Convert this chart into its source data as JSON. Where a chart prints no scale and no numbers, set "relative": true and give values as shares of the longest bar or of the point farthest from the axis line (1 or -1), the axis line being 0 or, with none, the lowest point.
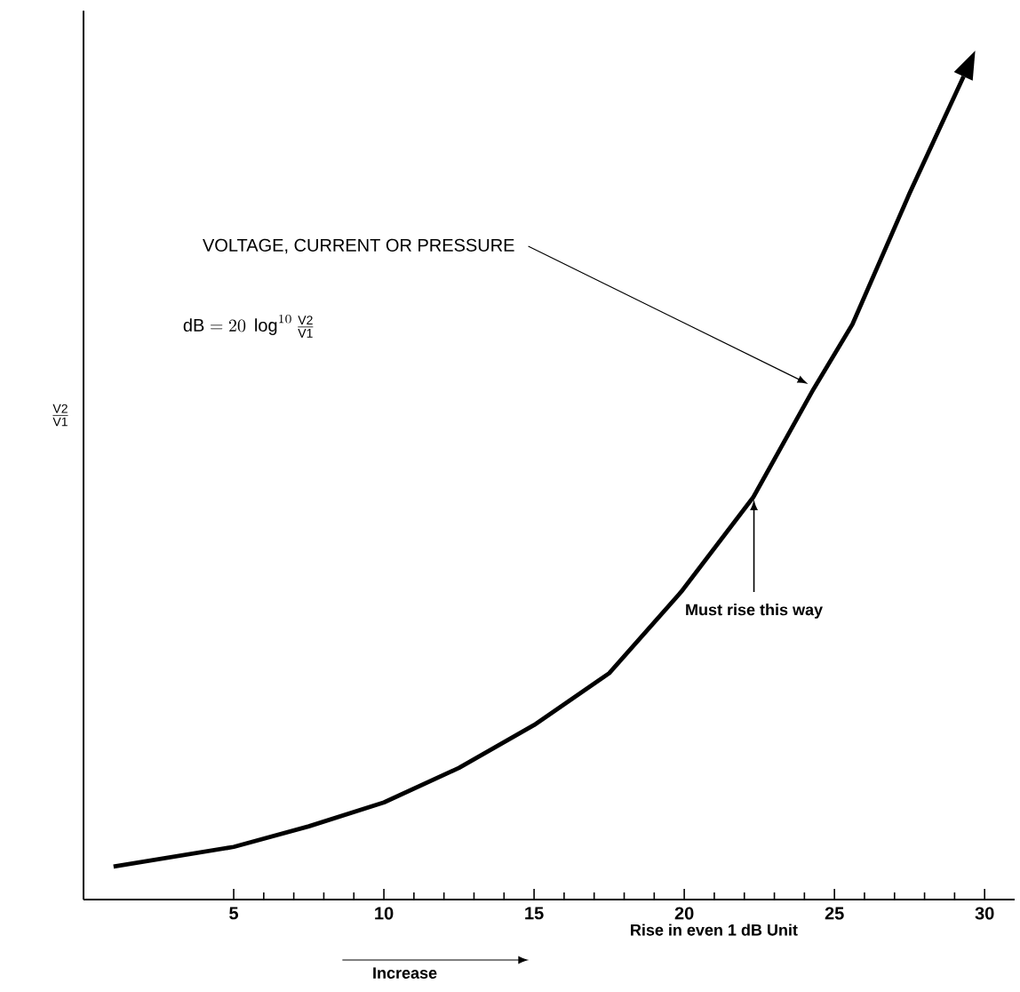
{
  "chart_data": {
    "type": "line",
    "relative": true,
    "xlabel": "Rise in even 1 dB Unit",
    "ylabel": "\\frac{\\mathrm{V2}}{\\mathrm{V1}}",
    "x": [
      1,
      5,
      7.5,
      10,
      12.5,
      15,
      17.5,
      19.9,
      22.3,
      24.3,
      25.6,
      27.5,
      29.3
    ],
    "series": [
      {
        "color": "#000000",
        "values": [
          0.04,
          0.064,
          0.089,
          0.118,
          0.16,
          0.212,
          0.275,
          0.374,
          0.489,
          0.62,
          0.699,
          0.858,
          1.0
        ]
      }
    ],
    "xlim": [
      0,
      31
    ],
    "xticks": [
      5,
      10,
      15,
      20,
      25,
      30
    ],
    "annotations": [
      "VOLTAGE, CURRENT OR PRESSURE",
      "Must rise this way",
      "Increase",
      "\\mathrm{dB} = 20\\ \\log^{10}\\frac{\\mathrm{V2}}{\\mathrm{V1}}"
    ]
  }
}
